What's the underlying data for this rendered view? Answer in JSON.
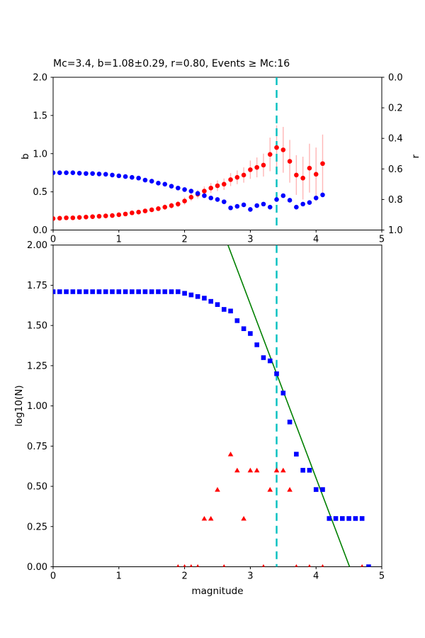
{
  "title": "Mc=3.4, b=1.08±0.29, r=0.80, Events ≥ Mc:16",
  "colors": {
    "b_points": "#ff0000",
    "b_error_bars": "#ffb6b6",
    "r_points": "#0000ff",
    "cumulative_points": "#0000ff",
    "bin_count_points": "#ff0000",
    "fit_line": "#008000",
    "mc_line": "#00bfbf",
    "axis": "#000000"
  },
  "chart_data": [
    {
      "type": "scatter",
      "name": "b-and-r-vs-cutoff-magnitude",
      "title": "Mc=3.4, b=1.08±0.29, r=0.80, Events ≥ Mc:16",
      "xlabel": "",
      "ylabel_left": "b",
      "ylabel_right": "r",
      "xlim": [
        0,
        5
      ],
      "ylim_left": [
        0,
        2
      ],
      "ylim_right": [
        0,
        1
      ],
      "right_axis_inverted": true,
      "xtick_labels": [
        "0",
        "1",
        "2",
        "3",
        "4",
        "5"
      ],
      "ytick_labels_left": [
        "0.0",
        "0.5",
        "1.0",
        "1.5",
        "2.0"
      ],
      "ytick_labels_right": [
        "0.0",
        "0.2",
        "0.4",
        "0.6",
        "0.8",
        "1.0"
      ],
      "mc_line_x": 3.4,
      "series": [
        {
          "name": "b-value",
          "axis": "left",
          "marker": "circle",
          "color": "#ff0000",
          "x": [
            0,
            0.1,
            0.2,
            0.3,
            0.4,
            0.5,
            0.6,
            0.7,
            0.8,
            0.9,
            1,
            1.1,
            1.2,
            1.3,
            1.4,
            1.5,
            1.6,
            1.7,
            1.8,
            1.9,
            2,
            2.1,
            2.2,
            2.3,
            2.4,
            2.5,
            2.6,
            2.7,
            2.8,
            2.9,
            3,
            3.1,
            3.2,
            3.3,
            3.4,
            3.5,
            3.6,
            3.7,
            3.8,
            3.9,
            4,
            4.1
          ],
          "y": [
            0.15,
            0.155,
            0.16,
            0.16,
            0.165,
            0.17,
            0.175,
            0.18,
            0.185,
            0.19,
            0.2,
            0.21,
            0.225,
            0.235,
            0.25,
            0.265,
            0.28,
            0.3,
            0.32,
            0.34,
            0.38,
            0.43,
            0.47,
            0.51,
            0.55,
            0.58,
            0.6,
            0.66,
            0.69,
            0.72,
            0.79,
            0.82,
            0.85,
            0.99,
            1.08,
            1.05,
            0.9,
            0.72,
            0.68,
            0.81,
            0.73,
            0.87
          ],
          "yerr": [
            0.01,
            0.01,
            0.01,
            0.01,
            0.01,
            0.01,
            0.015,
            0.015,
            0.015,
            0.015,
            0.02,
            0.02,
            0.02,
            0.025,
            0.025,
            0.03,
            0.03,
            0.035,
            0.04,
            0.04,
            0.05,
            0.05,
            0.055,
            0.06,
            0.065,
            0.07,
            0.075,
            0.085,
            0.09,
            0.1,
            0.12,
            0.13,
            0.15,
            0.22,
            0.29,
            0.3,
            0.28,
            0.26,
            0.28,
            0.32,
            0.35,
            0.38
          ]
        },
        {
          "name": "r-value",
          "axis": "right",
          "marker": "circle",
          "color": "#0000ff",
          "x": [
            0,
            0.1,
            0.2,
            0.3,
            0.4,
            0.5,
            0.6,
            0.7,
            0.8,
            0.9,
            1,
            1.1,
            1.2,
            1.3,
            1.4,
            1.5,
            1.6,
            1.7,
            1.8,
            1.9,
            2,
            2.1,
            2.2,
            2.3,
            2.4,
            2.5,
            2.6,
            2.7,
            2.8,
            2.9,
            3,
            3.1,
            3.2,
            3.3,
            3.4,
            3.5,
            3.6,
            3.7,
            3.8,
            3.9,
            4,
            4.1
          ],
          "y": [
            0.625,
            0.625,
            0.625,
            0.625,
            0.628,
            0.63,
            0.63,
            0.633,
            0.635,
            0.64,
            0.645,
            0.65,
            0.655,
            0.66,
            0.673,
            0.68,
            0.693,
            0.7,
            0.713,
            0.725,
            0.735,
            0.745,
            0.76,
            0.775,
            0.79,
            0.8,
            0.815,
            0.855,
            0.845,
            0.835,
            0.865,
            0.84,
            0.83,
            0.85,
            0.8,
            0.775,
            0.805,
            0.85,
            0.83,
            0.82,
            0.79,
            0.77
          ]
        }
      ]
    },
    {
      "type": "scatter",
      "name": "frequency-magnitude-distribution",
      "xlabel": "magnitude",
      "ylabel": "log10(N)",
      "xlim": [
        0,
        5
      ],
      "ylim": [
        0,
        2
      ],
      "xtick_labels": [
        "0",
        "1",
        "2",
        "3",
        "4",
        "5"
      ],
      "ytick_labels": [
        "0.00",
        "0.25",
        "0.50",
        "0.75",
        "1.00",
        "1.25",
        "1.50",
        "1.75",
        "2.00"
      ],
      "mc_line_x": 3.4,
      "series": [
        {
          "name": "cumulative-counts",
          "marker": "square",
          "color": "#0000ff",
          "x": [
            0,
            0.1,
            0.2,
            0.3,
            0.4,
            0.5,
            0.6,
            0.7,
            0.8,
            0.9,
            1,
            1.1,
            1.2,
            1.3,
            1.4,
            1.5,
            1.6,
            1.7,
            1.8,
            1.9,
            2,
            2.1,
            2.2,
            2.3,
            2.4,
            2.5,
            2.6,
            2.7,
            2.8,
            2.9,
            3,
            3.1,
            3.2,
            3.3,
            3.4,
            3.5,
            3.6,
            3.7,
            3.8,
            3.9,
            4,
            4.1,
            4.2,
            4.3,
            4.4,
            4.5,
            4.6,
            4.7,
            4.8
          ],
          "y": [
            1.71,
            1.71,
            1.71,
            1.71,
            1.71,
            1.71,
            1.71,
            1.71,
            1.71,
            1.71,
            1.71,
            1.71,
            1.71,
            1.71,
            1.71,
            1.71,
            1.71,
            1.71,
            1.71,
            1.71,
            1.7,
            1.69,
            1.68,
            1.67,
            1.65,
            1.63,
            1.6,
            1.59,
            1.53,
            1.48,
            1.45,
            1.38,
            1.3,
            1.28,
            1.2,
            1.08,
            0.9,
            0.7,
            0.6,
            0.6,
            0.48,
            0.48,
            0.3,
            0.3,
            0.3,
            0.3,
            0.3,
            0.3,
            0
          ]
        },
        {
          "name": "per-bin-counts",
          "marker": "triangle",
          "color": "#ff0000",
          "x": [
            1.9,
            2,
            2.1,
            2.2,
            2.3,
            2.4,
            2.5,
            2.6,
            2.7,
            2.8,
            2.9,
            3,
            3.1,
            3.2,
            3.3,
            3.4,
            3.5,
            3.6,
            3.7,
            3.9,
            4.1,
            4.7
          ],
          "y": [
            0,
            0,
            0,
            0,
            0.3,
            0.3,
            0.48,
            0,
            0.7,
            0.6,
            0.3,
            0.6,
            0.6,
            0,
            0.48,
            0.6,
            0.6,
            0.48,
            0,
            0,
            0,
            0
          ]
        },
        {
          "name": "gutenberg-richter-fit-line",
          "marker": "line",
          "color": "#008000",
          "x": [
            2.66,
            4.51
          ],
          "y": [
            2.0,
            0.0
          ]
        }
      ]
    }
  ]
}
